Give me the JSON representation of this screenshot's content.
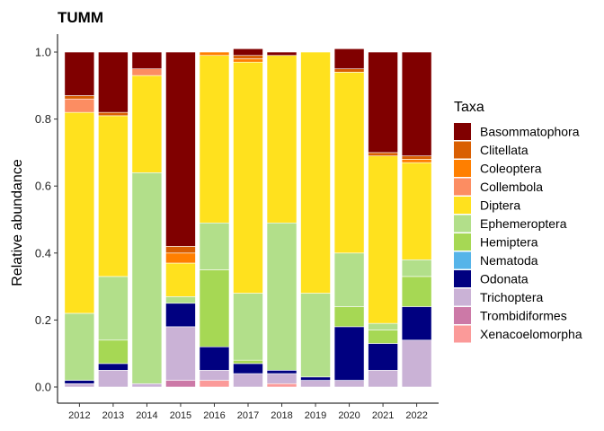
{
  "chart_data": {
    "type": "bar",
    "stacked": true,
    "title": "TUMM",
    "xlabel": "",
    "ylabel": "Relative abundance",
    "ylim": [
      0,
      1.05
    ],
    "yticks": [
      "0.0",
      "0.2",
      "0.4",
      "0.6",
      "0.8",
      "1.0"
    ],
    "grid": false,
    "legend_position": "right",
    "legend_title": "Taxa",
    "categories": [
      "2012",
      "2013",
      "2014",
      "2015",
      "2016",
      "2017",
      "2018",
      "2019",
      "2020",
      "2021",
      "2022"
    ],
    "series": [
      {
        "name": "Xenacoelomorpha",
        "color": "#FB9A99",
        "values": [
          0.0,
          0.0,
          0.0,
          0.0,
          0.02,
          0.0,
          0.01,
          0.0,
          0.0,
          0.0,
          0.0
        ]
      },
      {
        "name": "Trombidiformes",
        "color": "#CC79A7",
        "values": [
          0.0,
          0.0,
          0.0,
          0.02,
          0.0,
          0.0,
          0.0,
          0.0,
          0.0,
          0.0,
          0.0
        ]
      },
      {
        "name": "Trichoptera",
        "color": "#CAB2D6",
        "values": [
          0.01,
          0.05,
          0.01,
          0.16,
          0.03,
          0.04,
          0.03,
          0.02,
          0.02,
          0.05,
          0.14
        ]
      },
      {
        "name": "Odonata",
        "color": "#000080",
        "values": [
          0.01,
          0.02,
          0.0,
          0.07,
          0.07,
          0.03,
          0.01,
          0.01,
          0.16,
          0.08,
          0.1
        ]
      },
      {
        "name": "Nematoda",
        "color": "#56B4E9",
        "values": [
          0.0,
          0.0,
          0.0,
          0.0,
          0.0,
          0.0,
          0.0,
          0.0,
          0.0,
          0.0,
          0.0
        ]
      },
      {
        "name": "Hemiptera",
        "color": "#A6D854",
        "values": [
          0.0,
          0.07,
          0.0,
          0.0,
          0.23,
          0.01,
          0.0,
          0.0,
          0.06,
          0.04,
          0.09
        ]
      },
      {
        "name": "Ephemeroptera",
        "color": "#B2DF8A",
        "values": [
          0.2,
          0.19,
          0.63,
          0.02,
          0.14,
          0.2,
          0.44,
          0.25,
          0.16,
          0.02,
          0.05
        ]
      },
      {
        "name": "Diptera",
        "color": "#FFE11E",
        "values": [
          0.6,
          0.48,
          0.29,
          0.1,
          0.5,
          0.69,
          0.5,
          0.72,
          0.54,
          0.5,
          0.29
        ]
      },
      {
        "name": "Collembola",
        "color": "#FC8D62",
        "values": [
          0.04,
          0.0,
          0.02,
          0.0,
          0.0,
          0.0,
          0.0,
          0.0,
          0.0,
          0.0,
          0.0
        ]
      },
      {
        "name": "Coleoptera",
        "color": "#FF7F00",
        "values": [
          0.0,
          0.0,
          0.0,
          0.03,
          0.01,
          0.01,
          0.0,
          0.0,
          0.0,
          0.0,
          0.01
        ]
      },
      {
        "name": "Clitellata",
        "color": "#D95F02",
        "values": [
          0.01,
          0.01,
          0.0,
          0.02,
          0.0,
          0.01,
          0.0,
          0.0,
          0.01,
          0.01,
          0.01
        ]
      },
      {
        "name": "Basommatophora",
        "color": "#800000",
        "values": [
          0.13,
          0.18,
          0.05,
          0.58,
          0.0,
          0.02,
          0.01,
          0.0,
          0.06,
          0.3,
          0.31
        ]
      }
    ],
    "legend_order": [
      "Basommatophora",
      "Clitellata",
      "Coleoptera",
      "Collembola",
      "Diptera",
      "Ephemeroptera",
      "Hemiptera",
      "Nematoda",
      "Odonata",
      "Trichoptera",
      "Trombidiformes",
      "Xenacoelomorpha"
    ]
  }
}
